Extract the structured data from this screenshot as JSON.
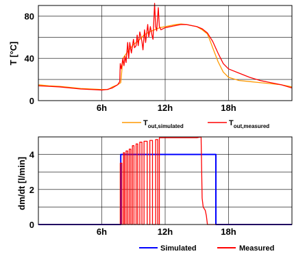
{
  "chart_data": [
    {
      "type": "line",
      "ylabel": "T [°C]",
      "xlabel": "",
      "xlim": [
        0,
        24
      ],
      "ylim": [
        0,
        90
      ],
      "yticks": [
        0,
        40,
        80
      ],
      "ygrid": [
        0,
        20,
        40,
        60,
        80
      ],
      "xticks": [
        6,
        12,
        18
      ],
      "xtick_labels": [
        "6h",
        "12h",
        "18h"
      ],
      "grid": true,
      "legend_position": "bottom-right",
      "series": [
        {
          "name": "T_out,simulated",
          "label_main": "T",
          "label_sub": "out,simulated",
          "color": "#ff9900",
          "x": [
            0,
            1,
            2,
            3,
            4,
            5,
            6,
            6.6,
            7,
            7.5,
            7.8,
            8,
            8.5,
            9,
            9.5,
            10,
            10.5,
            11,
            11.5,
            12,
            12.5,
            13,
            13.5,
            14,
            14.5,
            15,
            15.5,
            16,
            16.2,
            16.5,
            17,
            17.5,
            18,
            19,
            20,
            21,
            22,
            23,
            24
          ],
          "y": [
            15,
            14,
            13.5,
            12.5,
            11.5,
            11,
            10.5,
            10.5,
            13,
            15,
            17,
            40,
            47,
            53,
            57,
            62,
            65,
            67,
            69,
            70,
            71,
            72,
            72.5,
            72,
            71,
            70,
            67,
            63,
            58,
            50,
            37,
            27,
            22,
            19,
            18,
            17,
            16,
            15,
            13
          ]
        },
        {
          "name": "T_out,measured",
          "label_main": "T",
          "label_sub": "out,measured",
          "color": "#ff0000",
          "x": [
            0,
            1,
            2,
            3,
            4,
            5,
            6,
            6.5,
            7,
            7.5,
            7.7,
            7.75,
            7.85,
            8,
            8.1,
            8.2,
            8.3,
            8.45,
            8.55,
            8.65,
            8.8,
            9,
            9.1,
            9.25,
            9.35,
            9.45,
            9.6,
            9.8,
            9.9,
            10.05,
            10.15,
            10.35,
            10.45,
            10.6,
            10.75,
            10.85,
            11,
            11.1,
            11.2,
            11.35,
            11.45,
            11.6,
            11.8,
            12,
            12.5,
            13,
            13.5,
            14,
            14.5,
            15,
            15.5,
            16,
            16.5,
            17,
            17.5,
            18,
            19,
            20,
            21,
            22,
            23,
            24
          ],
          "y": [
            14,
            13.5,
            13,
            12,
            11,
            10.5,
            10,
            10.5,
            12,
            15,
            18,
            35,
            30,
            40,
            33,
            42,
            36,
            55,
            40,
            55,
            45,
            58,
            50,
            52,
            62,
            52,
            65,
            56,
            48,
            67,
            55,
            72,
            60,
            70,
            62,
            58,
            92,
            70,
            66,
            88,
            70,
            67,
            68,
            69,
            70,
            71,
            72,
            72,
            71,
            70,
            68,
            64,
            56,
            45,
            35,
            30,
            26,
            22,
            19,
            17,
            15,
            12
          ]
        }
      ]
    },
    {
      "type": "line",
      "ylabel": "dm/dt [l/min]",
      "xlabel": "",
      "xlim": [
        0,
        24
      ],
      "ylim": [
        0,
        5
      ],
      "yticks": [
        0,
        2,
        4
      ],
      "ygrid": [
        0,
        1,
        2,
        3,
        4
      ],
      "xticks": [
        6,
        12,
        18
      ],
      "xtick_labels": [
        "6h",
        "12h",
        "18h"
      ],
      "grid": true,
      "legend_position": "bottom-right",
      "series": [
        {
          "name": "Simulated",
          "color": "#0000ff",
          "x": [
            0,
            7.8,
            7.8,
            7.9,
            7.9,
            16.8,
            16.8,
            24
          ],
          "y": [
            0,
            0,
            4,
            4,
            4,
            4,
            0,
            0
          ]
        },
        {
          "name": "Measured",
          "color": "#ff0000",
          "x": [
            0,
            7.75,
            7.75,
            7.9,
            7.9,
            8.05,
            8.05,
            8.15,
            8.15,
            8.3,
            8.3,
            8.45,
            8.45,
            8.6,
            8.6,
            8.75,
            8.75,
            8.9,
            8.9,
            9.05,
            9.05,
            9.25,
            9.25,
            9.4,
            9.4,
            9.6,
            9.6,
            9.8,
            9.8,
            10.0,
            10.0,
            10.3,
            10.3,
            10.55,
            10.55,
            10.8,
            10.8,
            11.1,
            11.1,
            11.3,
            11.3,
            11.45,
            11.45,
            12,
            13,
            14,
            15,
            15.4,
            15.5,
            15.6,
            15.8,
            15.9,
            16.0,
            24
          ],
          "y": [
            0,
            0,
            3.5,
            3.5,
            0,
            0,
            4.1,
            4.1,
            0,
            0,
            4.2,
            4.2,
            0,
            0,
            4.3,
            4.3,
            0,
            0,
            4.5,
            4.5,
            0,
            0,
            4.6,
            4.6,
            0,
            0,
            4.7,
            4.7,
            0,
            0,
            4.75,
            4.75,
            0,
            0,
            4.8,
            4.8,
            0,
            0,
            4.85,
            4.85,
            0,
            0,
            4.95,
            4.95,
            4.95,
            4.95,
            4.95,
            5.0,
            1.5,
            1.0,
            0.8,
            0.5,
            0,
            0
          ]
        }
      ]
    }
  ]
}
